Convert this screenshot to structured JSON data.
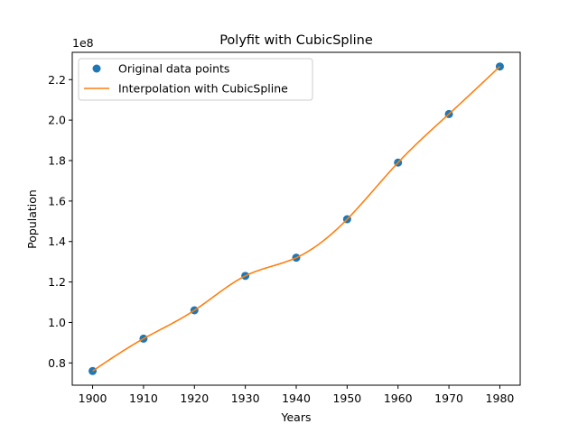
{
  "chart_data": {
    "type": "line",
    "title": "Polyfit with CubicSpline",
    "xlabel": "Years",
    "ylabel": "Population",
    "y_offset_label": "1e8",
    "xlim": [
      1896,
      1984
    ],
    "ylim": [
      0.69,
      2.335
    ],
    "x_ticks": [
      1900,
      1910,
      1920,
      1930,
      1940,
      1950,
      1960,
      1970,
      1980
    ],
    "x_tick_labels": [
      "1900",
      "1910",
      "1920",
      "1930",
      "1940",
      "1950",
      "1960",
      "1970",
      "1980"
    ],
    "y_ticks": [
      0.8,
      1.0,
      1.2,
      1.4,
      1.6,
      1.8,
      2.0,
      2.2
    ],
    "y_tick_labels": [
      "0.8",
      "1.0",
      "1.2",
      "1.4",
      "1.6",
      "1.8",
      "2.0",
      "2.2"
    ],
    "grid": false,
    "legend_position": "top-left",
    "x": [
      1900,
      1910,
      1920,
      1930,
      1940,
      1950,
      1960,
      1970,
      1980
    ],
    "series": [
      {
        "name": "Original data points",
        "kind": "scatter",
        "color": "#1f77b4",
        "values": [
          0.76,
          0.92,
          1.06,
          1.23,
          1.32,
          1.51,
          1.79,
          2.03,
          2.265
        ]
      },
      {
        "name": "Interpolation with CubicSpline",
        "kind": "line",
        "color": "#ff7f0e",
        "values": [
          0.76,
          0.92,
          1.06,
          1.23,
          1.32,
          1.51,
          1.79,
          2.03,
          2.265
        ]
      }
    ]
  }
}
